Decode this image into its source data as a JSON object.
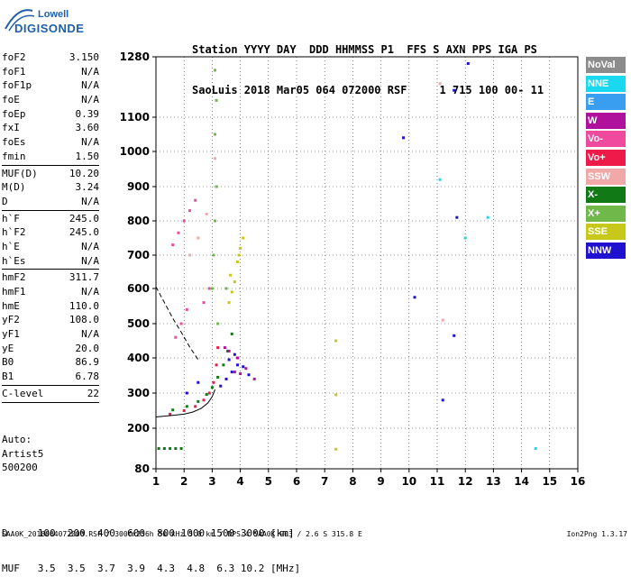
{
  "logo": {
    "line1": "Lowell",
    "line2": "DIGISONDE"
  },
  "header": {
    "line1": "Station YYYY DAY  DDD HHMMSS P1  FFS S AXN PPS IGA PS",
    "line2": "SaoLuis 2018 Mar05 064 072000 RSF     1 715 100 00- 11"
  },
  "params_group1": [
    {
      "k": "foF2",
      "v": "3.150"
    },
    {
      "k": "foF1",
      "v": "N/A"
    },
    {
      "k": "foF1p",
      "v": "N/A"
    },
    {
      "k": "foE",
      "v": "N/A"
    },
    {
      "k": "foEp",
      "v": "0.39"
    },
    {
      "k": "fxI",
      "v": "3.60"
    },
    {
      "k": "foEs",
      "v": "N/A"
    },
    {
      "k": "fmin",
      "v": "1.50"
    }
  ],
  "params_group2": [
    {
      "k": "MUF(D)",
      "v": "10.20"
    },
    {
      "k": "M(D)",
      "v": "3.24"
    },
    {
      "k": "D",
      "v": "N/A"
    }
  ],
  "params_group3": [
    {
      "k": "h`F",
      "v": "245.0"
    },
    {
      "k": "h`F2",
      "v": "245.0"
    },
    {
      "k": "h`E",
      "v": "N/A"
    },
    {
      "k": "h`Es",
      "v": "N/A"
    }
  ],
  "params_group4": [
    {
      "k": "hmF2",
      "v": "311.7"
    },
    {
      "k": "hmF1",
      "v": "N/A"
    },
    {
      "k": "hmE",
      "v": "110.0"
    },
    {
      "k": "yF2",
      "v": "108.0"
    },
    {
      "k": "yF1",
      "v": "N/A"
    },
    {
      "k": "yE",
      "v": "20.0"
    },
    {
      "k": "B0",
      "v": "86.9"
    },
    {
      "k": "B1",
      "v": "6.78"
    }
  ],
  "params_group5": [
    {
      "k": "C-level",
      "v": "22"
    }
  ],
  "auto": {
    "line1": "Auto:",
    "line2": "Artist5",
    "line3": "500200"
  },
  "legend": [
    {
      "label": "NoVal",
      "color": "#8c8c8c"
    },
    {
      "label": "NNE",
      "color": "#19d8f0"
    },
    {
      "label": "E",
      "color": "#3a9ef0"
    },
    {
      "label": "W",
      "color": "#b0119c"
    },
    {
      "label": "Vo-",
      "color": "#f04a9e"
    },
    {
      "label": "Vo+",
      "color": "#ee1b4a"
    },
    {
      "label": "SSW",
      "color": "#f0a8a8"
    },
    {
      "label": "X-",
      "color": "#117a17"
    },
    {
      "label": "X+",
      "color": "#70b84a"
    },
    {
      "label": "SSE",
      "color": "#c8c81a"
    },
    {
      "label": "NNW",
      "color": "#2010d0"
    }
  ],
  "muf_table": {
    "line1": "D     100  200  400  600  800 1000 1500 3000 [km]",
    "line2": "MUF   3.5  3.5  3.7  3.9  4.3  4.8  6.3 10.2 [MHz]"
  },
  "footer": {
    "left": "SAA0K_2018064072000.RSF / 300fx256h 50 kHz 5.0 km / DPS-4 SAA0K 903 / 2.6 S 315.8 E",
    "right": "Ion2Png 1.3.17"
  },
  "chart_data": {
    "type": "scatter",
    "x_ticks": [
      "1",
      "2",
      "3",
      "4",
      "5",
      "6",
      "7",
      "8",
      "9",
      "10",
      "11",
      "12",
      "13",
      "14",
      "15",
      "16"
    ],
    "y_ticks": [
      "80",
      "200",
      "300",
      "400",
      "500",
      "600",
      "700",
      "800",
      "900",
      "1000",
      "1100",
      "1280"
    ],
    "xlim": [
      1,
      16
    ],
    "ylim": [
      80,
      1280
    ],
    "trace_layer2": {
      "color": "#000000",
      "points": [
        [
          1.0,
          232
        ],
        [
          1.5,
          236
        ],
        [
          2.0,
          240
        ],
        [
          2.3,
          246
        ],
        [
          2.6,
          256
        ],
        [
          2.85,
          272
        ],
        [
          3.0,
          290
        ],
        [
          3.1,
          310
        ]
      ]
    },
    "trace_layer1": {
      "color": "#000000",
      "dashed": true,
      "points": [
        [
          1.0,
          605
        ],
        [
          1.3,
          560
        ],
        [
          1.6,
          515
        ],
        [
          1.9,
          475
        ],
        [
          2.2,
          432
        ],
        [
          2.5,
          395
        ]
      ]
    },
    "series": [
      {
        "name": "O trace main",
        "color": "#ee1b4a",
        "points": [
          [
            1.5,
            240
          ],
          [
            2.0,
            250
          ],
          [
            2.4,
            262
          ],
          [
            2.7,
            280
          ],
          [
            2.9,
            300
          ],
          [
            3.05,
            330
          ],
          [
            3.15,
            380
          ],
          [
            3.2,
            430
          ]
        ]
      },
      {
        "name": "X trace main",
        "color": "#117a17",
        "points": [
          [
            1.6,
            252
          ],
          [
            2.1,
            262
          ],
          [
            2.5,
            276
          ],
          [
            2.8,
            296
          ],
          [
            3.0,
            316
          ],
          [
            3.2,
            345
          ],
          [
            3.4,
            380
          ],
          [
            3.55,
            420
          ],
          [
            3.7,
            470
          ]
        ]
      },
      {
        "name": "NNW spread",
        "color": "#2010d0",
        "points": [
          [
            3.3,
            320
          ],
          [
            3.5,
            340
          ],
          [
            3.7,
            360
          ],
          [
            3.9,
            380
          ],
          [
            4.1,
            375
          ],
          [
            4.3,
            352
          ],
          [
            3.6,
            395
          ],
          [
            3.8,
            410
          ],
          [
            2.5,
            330
          ],
          [
            2.1,
            300
          ]
        ]
      },
      {
        "name": "W spread",
        "color": "#b0119c",
        "points": [
          [
            3.6,
            420
          ],
          [
            3.9,
            400
          ],
          [
            4.2,
            370
          ],
          [
            4.5,
            340
          ],
          [
            3.8,
            360
          ],
          [
            4.0,
            355
          ],
          [
            3.45,
            430
          ]
        ]
      },
      {
        "name": "SSE cluster",
        "color": "#c8c81a",
        "points": [
          [
            3.6,
            560
          ],
          [
            3.7,
            590
          ],
          [
            3.8,
            620
          ],
          [
            3.9,
            680
          ],
          [
            4.0,
            720
          ],
          [
            4.1,
            750
          ],
          [
            3.65,
            640
          ],
          [
            3.95,
            700
          ],
          [
            7.4,
            450
          ],
          [
            7.4,
            295
          ],
          [
            7.4,
            138
          ]
        ]
      },
      {
        "name": "Vo- upper",
        "color": "#f04a9e",
        "points": [
          [
            1.7,
            460
          ],
          [
            1.9,
            500
          ],
          [
            2.1,
            540
          ],
          [
            1.6,
            730
          ],
          [
            1.8,
            765
          ],
          [
            2.0,
            800
          ],
          [
            2.2,
            830
          ],
          [
            2.4,
            860
          ],
          [
            2.7,
            560
          ],
          [
            2.9,
            600
          ]
        ]
      },
      {
        "name": "X+ upper",
        "color": "#70b84a",
        "points": [
          [
            3.0,
            600
          ],
          [
            3.05,
            700
          ],
          [
            3.1,
            800
          ],
          [
            3.15,
            900
          ],
          [
            3.1,
            1050
          ],
          [
            3.15,
            1150
          ],
          [
            3.1,
            1240
          ],
          [
            3.5,
            600
          ],
          [
            3.2,
            500
          ]
        ]
      },
      {
        "name": "SSW upper",
        "color": "#f0a8a8",
        "points": [
          [
            2.2,
            700
          ],
          [
            2.5,
            750
          ],
          [
            2.8,
            820
          ],
          [
            3.1,
            980
          ],
          [
            11.1,
            1200
          ],
          [
            11.2,
            510
          ]
        ]
      },
      {
        "name": "low echoes",
        "color": "#117a17",
        "points": [
          [
            1.1,
            140
          ],
          [
            1.3,
            140
          ],
          [
            1.5,
            140
          ],
          [
            1.7,
            140
          ],
          [
            1.9,
            140
          ]
        ]
      },
      {
        "name": "scatter noise",
        "color": "#2010d0",
        "points": [
          [
            11.6,
            1180
          ],
          [
            12.1,
            1260
          ],
          [
            9.8,
            1040
          ],
          [
            11.2,
            280
          ],
          [
            11.6,
            465
          ],
          [
            10.2,
            575
          ],
          [
            11.7,
            810
          ]
        ]
      },
      {
        "name": "cyan noise",
        "color": "#19d8f0",
        "points": [
          [
            12.8,
            810
          ],
          [
            14.5,
            140
          ],
          [
            11.1,
            920
          ],
          [
            12.0,
            750
          ]
        ]
      }
    ]
  }
}
